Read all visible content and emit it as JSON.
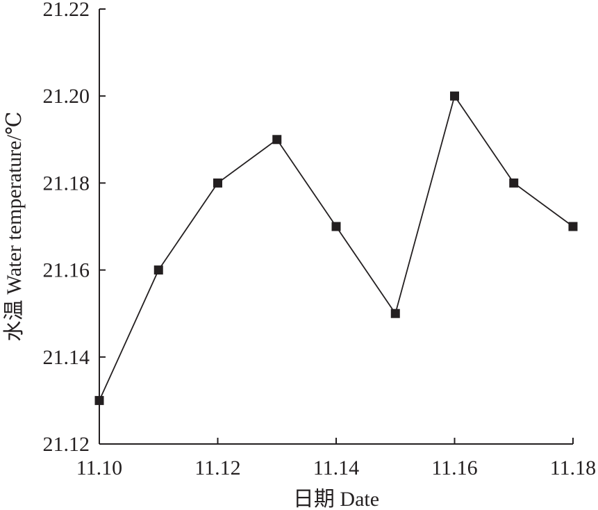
{
  "chart_data": {
    "type": "line",
    "xlabel": "日期 Date",
    "ylabel": "水温 Water temperature/℃",
    "xlim": [
      11.1,
      11.18
    ],
    "ylim": [
      21.12,
      21.22
    ],
    "x_ticks": [
      "11.10",
      "11.12",
      "11.14",
      "11.16",
      "11.18"
    ],
    "y_ticks": [
      "21.12",
      "21.14",
      "21.16",
      "21.18",
      "21.20",
      "21.22"
    ],
    "x_tick_values": [
      11.1,
      11.12,
      11.14,
      11.16,
      11.18
    ],
    "y_tick_values": [
      21.12,
      21.14,
      21.16,
      21.18,
      21.2,
      21.22
    ],
    "x": [
      11.1,
      11.11,
      11.12,
      11.13,
      11.14,
      11.15,
      11.16,
      11.17,
      11.18
    ],
    "series": [
      {
        "values": [
          21.13,
          21.16,
          21.18,
          21.19,
          21.17,
          21.15,
          21.2,
          21.18,
          21.17
        ],
        "marker": "square",
        "color": "#231f20"
      }
    ],
    "grid": false,
    "legend": "none"
  }
}
